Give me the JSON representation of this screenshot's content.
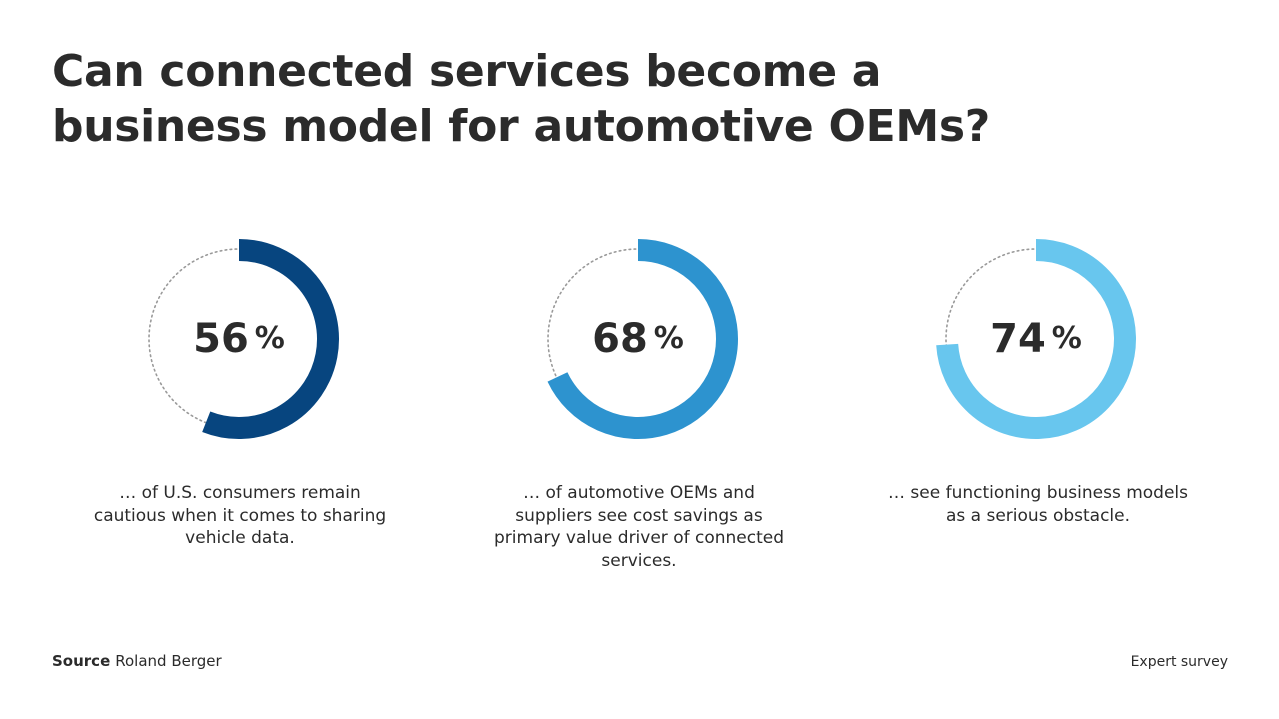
{
  "chart_data": {
    "type": "donut",
    "title": "Can connected services become a business model for automotive OEMs?",
    "items": [
      {
        "value": 56,
        "value_text": "56",
        "unit": "%",
        "color": "#07457f",
        "caption": "… of U.S. consumers remain cautious when it comes to sharing vehicle data."
      },
      {
        "value": 68,
        "value_text": "68",
        "unit": "%",
        "color": "#2d93cf",
        "caption": "… of automotive OEMs and suppliers see cost savings as primary value driver of connected services."
      },
      {
        "value": 74,
        "value_text": "74",
        "unit": "%",
        "color": "#68c6ee",
        "caption": "… see functioning business models as a serious obstacle."
      }
    ],
    "remainder_style": "dotted-gray"
  },
  "footer": {
    "source_label": "Source",
    "source_value": "Roland Berger",
    "note": "Expert survey"
  }
}
